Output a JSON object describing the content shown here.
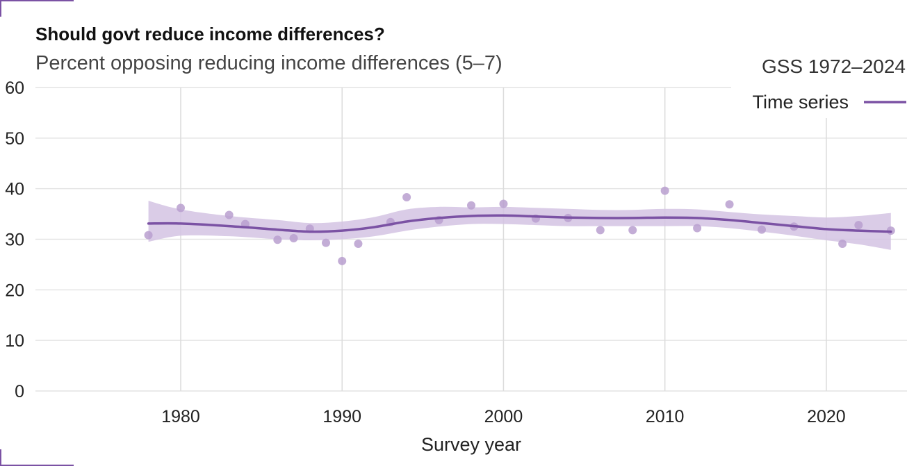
{
  "chart_data": {
    "type": "scatter",
    "title": "Should govt reduce income differences?",
    "subtitle": "Percent opposing reducing income differences (5–7)",
    "xlabel": "Survey year",
    "ylabel": "",
    "xlim": [
      1971,
      2025
    ],
    "ylim": [
      0,
      60
    ],
    "x_ticks": [
      1980,
      1990,
      2000,
      2010,
      2020
    ],
    "y_ticks": [
      0,
      10,
      20,
      30,
      40,
      50,
      60
    ],
    "grid": true,
    "legend": {
      "title": "GSS 1972–2024",
      "placement": "top-right",
      "entries": [
        "Time series"
      ]
    },
    "colors": {
      "accent": "#7b52a4",
      "points": "#b89fcf",
      "band": "#d3c3e3"
    },
    "points": [
      {
        "x": 1978,
        "y": 30.8
      },
      {
        "x": 1980,
        "y": 36.2
      },
      {
        "x": 1983,
        "y": 34.8
      },
      {
        "x": 1984,
        "y": 33.0
      },
      {
        "x": 1986,
        "y": 29.9
      },
      {
        "x": 1987,
        "y": 30.2
      },
      {
        "x": 1988,
        "y": 32.1
      },
      {
        "x": 1989,
        "y": 29.3
      },
      {
        "x": 1990,
        "y": 25.7
      },
      {
        "x": 1991,
        "y": 29.1
      },
      {
        "x": 1993,
        "y": 33.4
      },
      {
        "x": 1994,
        "y": 38.3
      },
      {
        "x": 1996,
        "y": 33.8
      },
      {
        "x": 1998,
        "y": 36.7
      },
      {
        "x": 2000,
        "y": 37.0
      },
      {
        "x": 2002,
        "y": 34.1
      },
      {
        "x": 2004,
        "y": 34.2
      },
      {
        "x": 2006,
        "y": 31.8
      },
      {
        "x": 2008,
        "y": 31.8
      },
      {
        "x": 2010,
        "y": 39.6
      },
      {
        "x": 2012,
        "y": 32.2
      },
      {
        "x": 2014,
        "y": 36.9
      },
      {
        "x": 2016,
        "y": 31.9
      },
      {
        "x": 2018,
        "y": 32.5
      },
      {
        "x": 2021,
        "y": 29.1
      },
      {
        "x": 2022,
        "y": 32.8
      },
      {
        "x": 2024,
        "y": 31.7
      }
    ],
    "series": [
      {
        "name": "Time series",
        "x": [
          1978,
          1980,
          1983,
          1986,
          1988,
          1990,
          1992,
          1994,
          1996,
          1998,
          2000,
          2002,
          2004,
          2006,
          2008,
          2010,
          2012,
          2014,
          2016,
          2018,
          2020,
          2022,
          2024
        ],
        "y": [
          33.1,
          33.1,
          32.6,
          31.9,
          31.5,
          31.7,
          32.4,
          33.5,
          34.2,
          34.6,
          34.7,
          34.5,
          34.3,
          34.2,
          34.2,
          34.3,
          34.2,
          33.8,
          33.2,
          32.6,
          32.0,
          31.7,
          31.5
        ],
        "lower": [
          29.5,
          30.7,
          30.6,
          30.0,
          29.8,
          30.0,
          30.6,
          31.7,
          32.5,
          33.0,
          33.0,
          32.8,
          32.6,
          32.6,
          32.6,
          32.6,
          32.6,
          32.2,
          31.5,
          30.7,
          29.8,
          29.0,
          27.9
        ],
        "upper": [
          37.6,
          35.9,
          34.6,
          33.8,
          33.2,
          33.5,
          34.4,
          35.9,
          36.4,
          36.3,
          36.4,
          36.2,
          36.0,
          35.8,
          35.8,
          36.0,
          35.9,
          35.4,
          34.9,
          34.6,
          34.3,
          34.6,
          35.2
        ]
      }
    ]
  }
}
